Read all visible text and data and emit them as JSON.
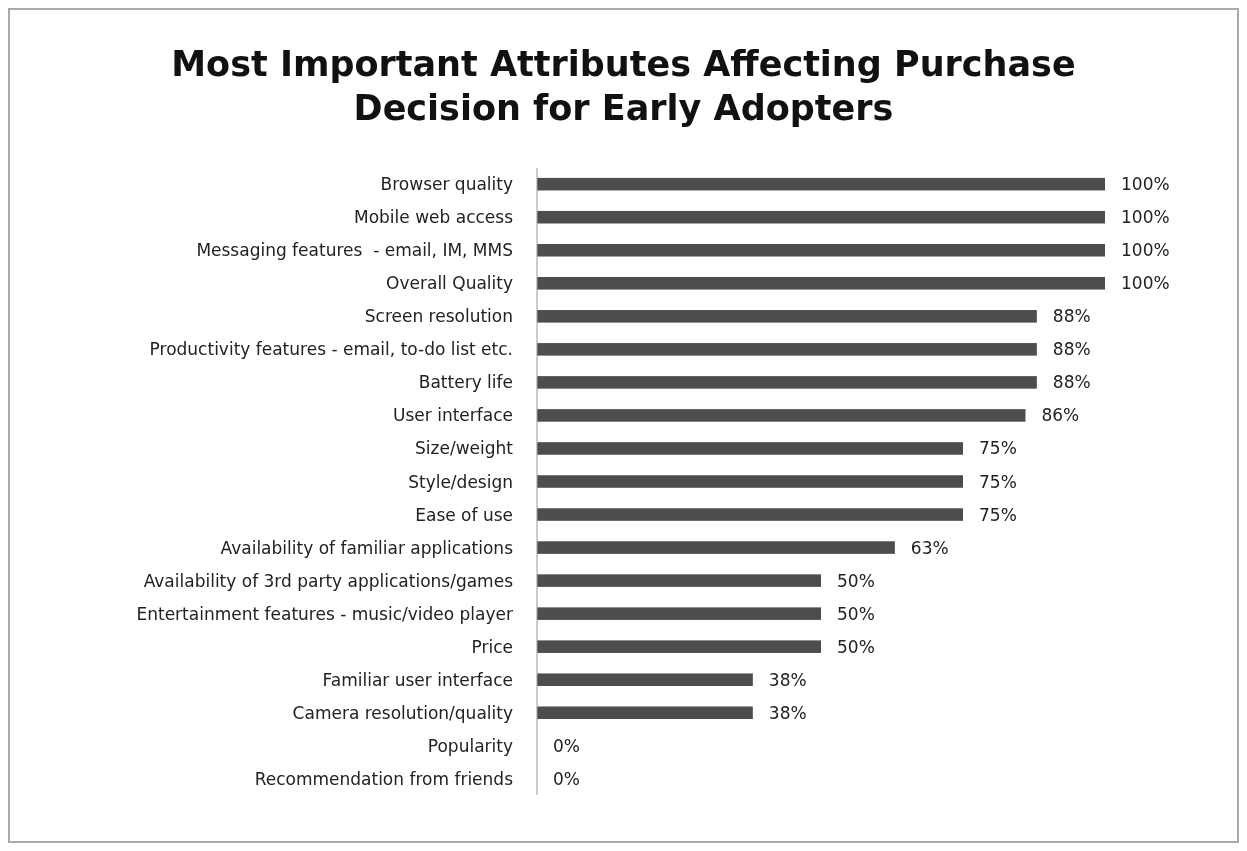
{
  "chart_data": {
    "type": "bar",
    "orientation": "horizontal",
    "title": "Most Important Attributes Affecting Purchase Decision for Early Adopters",
    "categories": [
      "Browser quality",
      "Mobile web access",
      "Messaging features  - email, IM, MMS",
      "Overall Quality",
      "Screen resolution",
      "Productivity features - email, to-do list etc.",
      "Battery life",
      "User interface",
      "Size/weight",
      "Style/design",
      "Ease of use",
      "Availability of familiar applications",
      "Availability of 3rd party applications/games",
      "Entertainment features - music/video player",
      "Price",
      "Familiar user interface",
      "Camera resolution/quality",
      "Popularity",
      "Recommendation from friends"
    ],
    "values": [
      100,
      100,
      100,
      100,
      88,
      88,
      88,
      86,
      75,
      75,
      75,
      63,
      50,
      50,
      50,
      38,
      38,
      0,
      0
    ],
    "value_labels": [
      "100%",
      "100%",
      "100%",
      "100%",
      "88%",
      "88%",
      "88%",
      "86%",
      "75%",
      "75%",
      "75%",
      "63%",
      "50%",
      "50%",
      "50%",
      "38%",
      "38%",
      "0%",
      "0%"
    ],
    "color": "#4d4d4d"
  }
}
